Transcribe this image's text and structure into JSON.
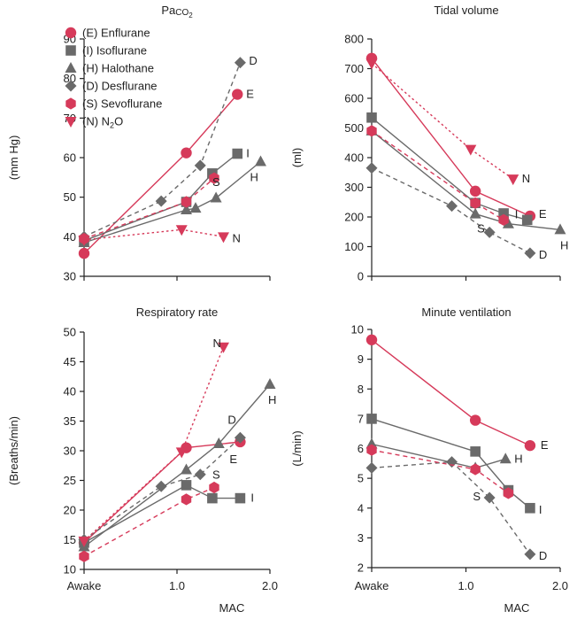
{
  "x_label": "MAC",
  "colors": {
    "red": "#d63a5a",
    "gray": "#6a6a6a",
    "axis": "#222222"
  },
  "legend": {
    "placement": "top-left of first panel",
    "entries": [
      {
        "text": "(E) Enflurane",
        "marker": "circle",
        "color": "#d63a5a",
        "style": "solid"
      },
      {
        "text": "(I) Isoflurane",
        "marker": "square",
        "color": "#6a6a6a",
        "style": "solid"
      },
      {
        "text": "(H) Halothane",
        "marker": "triangle-up",
        "color": "#6a6a6a",
        "style": "solid"
      },
      {
        "text": "(D) Desflurane",
        "marker": "diamond",
        "color": "#6a6a6a",
        "style": "dashed"
      },
      {
        "text": "(S) Sevoflurane",
        "marker": "hexagon",
        "color": "#d63a5a",
        "style": "dashed"
      },
      {
        "text_prefix": "(N) N",
        "text_sub": "2",
        "text_suffix": "O",
        "marker": "triangle-down",
        "color": "#d63a5a",
        "style": "dotted"
      }
    ]
  },
  "chart_data": [
    {
      "type": "line",
      "title_main": "Pa",
      "title_sub": "CO",
      "title_subsub": "2",
      "ylabel": "(mm Hg)",
      "ylim": [
        30,
        90
      ],
      "yticks": [
        30,
        40,
        50,
        60,
        70,
        80,
        90
      ],
      "xlim": [
        0,
        2.0
      ],
      "xticks": [
        {
          "v": 0,
          "label": "Awake"
        },
        {
          "v": 1.0,
          "label": "1.0"
        },
        {
          "v": 2.0,
          "label": "2.0"
        }
      ],
      "show_xtick_labels": false,
      "series": [
        {
          "name": "E",
          "label": "E",
          "color": "#d63a5a",
          "style": "solid",
          "marker": "circle",
          "x": [
            0,
            1.1,
            1.65
          ],
          "y": [
            35.8,
            61.2,
            76
          ]
        },
        {
          "name": "I",
          "label": "I",
          "color": "#6a6a6a",
          "style": "solid",
          "marker": "square",
          "x": [
            0,
            1.1,
            1.38,
            1.65
          ],
          "y": [
            39,
            48.8,
            56,
            61
          ]
        },
        {
          "name": "H",
          "label": "H",
          "color": "#6a6a6a",
          "style": "solid",
          "marker": "triangle-up",
          "x": [
            0,
            1.1,
            1.2,
            1.42,
            1.9
          ],
          "y": [
            38.5,
            46.8,
            47.2,
            49.8,
            59
          ]
        },
        {
          "name": "D",
          "label": "D",
          "color": "#6a6a6a",
          "style": "dashed",
          "marker": "diamond",
          "x": [
            0,
            0.83,
            1.25,
            1.68
          ],
          "y": [
            40,
            49,
            58,
            84
          ]
        },
        {
          "name": "S",
          "label": "S",
          "color": "#d63a5a",
          "style": "dashed",
          "marker": "hexagon",
          "x": [
            0,
            1.1,
            1.4
          ],
          "y": [
            39.5,
            48.8,
            54.8
          ]
        },
        {
          "name": "N",
          "label": "N",
          "color": "#d63a5a",
          "style": "dotted",
          "marker": "triangle-down",
          "x": [
            0,
            1.05,
            1.5
          ],
          "y": [
            39.2,
            41.8,
            40
          ]
        }
      ]
    },
    {
      "type": "line",
      "title": "Tidal volume",
      "ylabel": "(ml)",
      "ylim": [
        0,
        800
      ],
      "yticks": [
        0,
        100,
        200,
        300,
        400,
        500,
        600,
        700,
        800
      ],
      "xlim": [
        0,
        2.0
      ],
      "xticks": [
        {
          "v": 0,
          "label": "Awake"
        },
        {
          "v": 1.0,
          "label": "1.0"
        },
        {
          "v": 2.0,
          "label": "2.0"
        }
      ],
      "show_xtick_labels": false,
      "series": [
        {
          "name": "E",
          "label": "E",
          "color": "#d63a5a",
          "style": "solid",
          "marker": "circle",
          "x": [
            0,
            1.1,
            1.68
          ],
          "y": [
            735,
            287,
            203
          ]
        },
        {
          "name": "I",
          "label": "I",
          "color": "#6a6a6a",
          "style": "solid",
          "marker": "square",
          "x": [
            0,
            1.1,
            1.4,
            1.65
          ],
          "y": [
            535,
            247,
            212,
            190
          ]
        },
        {
          "name": "H",
          "label": "H",
          "color": "#6a6a6a",
          "style": "solid",
          "marker": "triangle-up",
          "x": [
            0,
            1.1,
            1.45,
            2.0
          ],
          "y": [
            490,
            210,
            177,
            157
          ]
        },
        {
          "name": "D",
          "label": "D",
          "color": "#6a6a6a",
          "style": "dashed",
          "marker": "diamond",
          "x": [
            0,
            0.85,
            1.25,
            1.68
          ],
          "y": [
            365,
            237,
            148,
            78
          ]
        },
        {
          "name": "S",
          "label": "S",
          "color": "#d63a5a",
          "style": "dashed",
          "marker": "hexagon",
          "x": [
            0,
            1.1,
            1.4
          ],
          "y": [
            490,
            247,
            190
          ]
        },
        {
          "name": "N",
          "label": "N",
          "color": "#d63a5a",
          "style": "dotted",
          "marker": "triangle-down",
          "x": [
            0,
            1.05,
            1.5
          ],
          "y": [
            718,
            428,
            328
          ]
        }
      ]
    },
    {
      "type": "line",
      "title": "Respiratory rate",
      "ylabel": "(Breaths/min)",
      "ylim": [
        10,
        50
      ],
      "yticks": [
        10,
        15,
        20,
        25,
        30,
        35,
        40,
        45,
        50
      ],
      "xlim": [
        0,
        2.0
      ],
      "xticks": [
        {
          "v": 0,
          "label": "Awake"
        },
        {
          "v": 1.0,
          "label": "1.0"
        },
        {
          "v": 2.0,
          "label": "2.0"
        }
      ],
      "show_xtick_labels": true,
      "series": [
        {
          "name": "E",
          "label": "E",
          "color": "#d63a5a",
          "style": "solid",
          "marker": "circle",
          "x": [
            0,
            1.1,
            1.68
          ],
          "y": [
            14.5,
            30.5,
            31.5
          ]
        },
        {
          "name": "I",
          "label": "I",
          "color": "#6a6a6a",
          "style": "solid",
          "marker": "square",
          "x": [
            0,
            1.1,
            1.38,
            1.68
          ],
          "y": [
            14.5,
            24.2,
            22,
            22
          ]
        },
        {
          "name": "H",
          "label": "H",
          "color": "#6a6a6a",
          "style": "solid",
          "marker": "triangle-up",
          "x": [
            0,
            1.1,
            1.45,
            2.0
          ],
          "y": [
            13.8,
            26.8,
            31.2,
            41.2
          ]
        },
        {
          "name": "D",
          "label": "D",
          "color": "#6a6a6a",
          "style": "dashed",
          "marker": "diamond",
          "x": [
            0,
            0.83,
            1.25,
            1.68
          ],
          "y": [
            15,
            24,
            26,
            32.2
          ]
        },
        {
          "name": "S",
          "label": "S",
          "color": "#d63a5a",
          "style": "dashed",
          "marker": "hexagon",
          "x": [
            0,
            1.1,
            1.4
          ],
          "y": [
            12.2,
            21.8,
            23.8
          ]
        },
        {
          "name": "N",
          "label": "N",
          "color": "#d63a5a",
          "style": "dotted",
          "marker": "triangle-down",
          "x": [
            0,
            1.05,
            1.5
          ],
          "y": [
            14.8,
            29.8,
            47.5
          ]
        }
      ]
    },
    {
      "type": "line",
      "title": "Minute ventilation",
      "ylabel": "(L/min)",
      "ylim": [
        2,
        10
      ],
      "yticks": [
        2,
        3,
        4,
        5,
        6,
        7,
        8,
        9,
        10
      ],
      "xlim": [
        0,
        2.0
      ],
      "xticks": [
        {
          "v": 0,
          "label": "Awake"
        },
        {
          "v": 1.0,
          "label": "1.0"
        },
        {
          "v": 2.0,
          "label": "2.0"
        }
      ],
      "show_xtick_labels": true,
      "series": [
        {
          "name": "E",
          "label": "E",
          "color": "#d63a5a",
          "style": "solid",
          "marker": "circle",
          "x": [
            0,
            1.1,
            1.68
          ],
          "y": [
            9.65,
            6.95,
            6.1
          ]
        },
        {
          "name": "I",
          "label": "I",
          "color": "#6a6a6a",
          "style": "solid",
          "marker": "square",
          "x": [
            0,
            1.1,
            1.45,
            1.68
          ],
          "y": [
            7,
            5.9,
            4.6,
            4
          ]
        },
        {
          "name": "H",
          "label": "H",
          "color": "#6a6a6a",
          "style": "solid",
          "marker": "triangle-up",
          "x": [
            0,
            1.1,
            1.42
          ],
          "y": [
            6.15,
            5.35,
            5.65
          ]
        },
        {
          "name": "D",
          "label": "D",
          "color": "#6a6a6a",
          "style": "dashed",
          "marker": "diamond",
          "x": [
            0,
            0.85,
            1.25,
            1.68
          ],
          "y": [
            5.35,
            5.55,
            4.35,
            2.45
          ]
        },
        {
          "name": "S",
          "label": "S",
          "color": "#d63a5a",
          "style": "dashed",
          "marker": "hexagon",
          "x": [
            0,
            1.1,
            1.45
          ],
          "y": [
            5.95,
            5.3,
            4.5
          ]
        }
      ]
    }
  ]
}
